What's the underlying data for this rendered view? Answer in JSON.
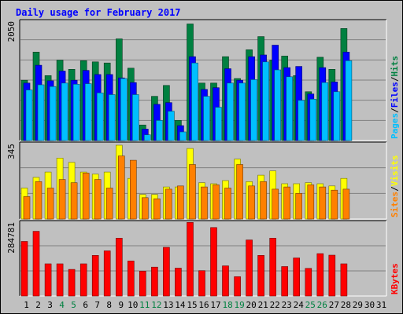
{
  "chart_data": {
    "type": "bar",
    "title": "Daily usage for February 2017",
    "x": [
      "1",
      "2",
      "3",
      "4",
      "5",
      "6",
      "7",
      "8",
      "9",
      "10",
      "11",
      "12",
      "13",
      "14",
      "15",
      "16",
      "17",
      "18",
      "19",
      "20",
      "21",
      "22",
      "23",
      "24",
      "25",
      "26",
      "27",
      "28",
      "29",
      "30",
      "31"
    ],
    "weekend_days": [
      "4",
      "5",
      "11",
      "12",
      "18",
      "19",
      "25",
      "26"
    ],
    "panels": [
      {
        "id": "hits",
        "ymax_label": "2050",
        "ymax": 2050,
        "series": [
          {
            "name": "Hits",
            "color": "#008040",
            "values": [
              1050,
              1540,
              1130,
              1400,
              1240,
              1390,
              1370,
              1350,
              1770,
              1260,
              270,
              770,
              960,
              350,
              2030,
              1000,
              1000,
              1460,
              1080,
              1580,
              1810,
              1400,
              1470,
              1130,
              850,
              1450,
              1240,
              1950,
              null,
              null,
              null
            ]
          },
          {
            "name": "Files",
            "color": "#0000ff",
            "values": [
              1000,
              1310,
              1040,
              1210,
              1050,
              1220,
              1150,
              1150,
              1090,
              1010,
              200,
              630,
              660,
              260,
              1460,
              890,
              920,
              1250,
              1050,
              1460,
              1490,
              1660,
              1270,
              1290,
              810,
              1270,
              1020,
              1540,
              null,
              null,
              null
            ]
          },
          {
            "name": "Pages",
            "color": "#00bfff",
            "values": [
              880,
              970,
              940,
              1000,
              980,
              990,
              830,
              800,
              1080,
              800,
              100,
              350,
              510,
              150,
              1350,
              770,
              580,
              1000,
              1000,
              1060,
              1370,
              1230,
              1110,
              700,
              720,
              1010,
              850,
              1390,
              null,
              null,
              null
            ]
          }
        ],
        "axis_labels": [
          "Pages",
          "Files",
          "Hits"
        ]
      },
      {
        "id": "visits",
        "ymax_label": "345",
        "ymax": 345,
        "series": [
          {
            "name": "Visits",
            "color": "#ffff00",
            "values": [
              145,
              195,
              220,
              285,
              265,
              220,
              210,
              220,
              345,
              190,
              115,
              115,
              150,
              150,
              330,
              170,
              165,
              180,
              280,
              175,
              205,
              225,
              165,
              165,
              170,
              165,
              155,
              190,
              null,
              null,
              null
            ]
          },
          {
            "name": "Sites",
            "color": "#ff8000",
            "values": [
              105,
              175,
              145,
              185,
              170,
              215,
              185,
              145,
              295,
              275,
              100,
              95,
              140,
              155,
              255,
              150,
              160,
              145,
              255,
              155,
              175,
              140,
              150,
              120,
              160,
              150,
              135,
              140,
              null,
              null,
              null
            ]
          }
        ],
        "axis_labels": [
          "Sites",
          "Visits"
        ]
      },
      {
        "id": "kbytes",
        "ymax_label": "284781",
        "ymax": 284781,
        "series": [
          {
            "name": "KBytes",
            "color": "#ff0000",
            "values": [
              215000,
              255000,
              127000,
              127000,
              105000,
              127000,
              160000,
              178000,
              228000,
              138000,
              98000,
              114000,
              192000,
              110000,
              290000,
              100000,
              270000,
              119000,
              76000,
              221000,
              160000,
              228000,
              116000,
              150000,
              109000,
              167000,
              161000,
              127000,
              null,
              null,
              null
            ]
          }
        ],
        "axis_labels": [
          "KBytes"
        ]
      }
    ],
    "grid": true,
    "legend": "right-vertical"
  }
}
